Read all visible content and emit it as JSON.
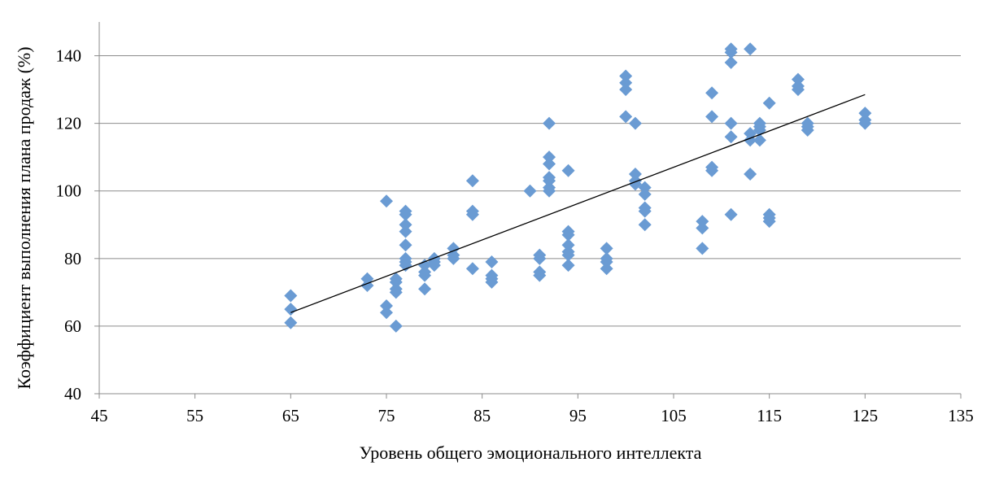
{
  "chart_data": {
    "type": "scatter",
    "title": "",
    "xlabel": "Уровень общего эмоционального интеллекта",
    "ylabel": "Коэффициент выполнения плана продаж (%)",
    "xlim": [
      45,
      135
    ],
    "ylim": [
      40,
      150
    ],
    "xticks": [
      45,
      55,
      65,
      75,
      85,
      95,
      105,
      115,
      125,
      135
    ],
    "yticks": [
      40,
      60,
      80,
      100,
      120,
      140
    ],
    "xtick_labels": [
      "45",
      "55",
      "65",
      "75",
      "85",
      "95",
      "105",
      "115",
      "125",
      "135"
    ],
    "ytick_labels": [
      "40",
      "60",
      "80",
      "100",
      "120",
      "140"
    ],
    "grid": "horizontal",
    "legend": "none",
    "marker": "diamond",
    "marker_color": "#6a9bd3",
    "trendline_color": "#000000",
    "trendline": {
      "type": "linear",
      "x": [
        65,
        125
      ],
      "y": [
        64,
        128.5
      ]
    },
    "series": [
      {
        "points": [
          [
            65,
            69
          ],
          [
            65,
            65
          ],
          [
            65,
            61
          ],
          [
            73,
            74
          ],
          [
            73,
            72
          ],
          [
            75,
            97
          ],
          [
            75,
            66
          ],
          [
            75,
            64
          ],
          [
            76,
            74
          ],
          [
            76,
            73
          ],
          [
            76,
            71
          ],
          [
            76,
            70
          ],
          [
            76,
            60
          ],
          [
            77,
            94
          ],
          [
            77,
            93
          ],
          [
            77,
            90
          ],
          [
            77,
            88
          ],
          [
            77,
            84
          ],
          [
            77,
            80
          ],
          [
            77,
            79
          ],
          [
            77,
            78
          ],
          [
            79,
            78
          ],
          [
            79,
            76
          ],
          [
            79,
            75
          ],
          [
            79,
            71
          ],
          [
            80,
            80
          ],
          [
            80,
            79
          ],
          [
            80,
            78
          ],
          [
            82,
            83
          ],
          [
            82,
            81
          ],
          [
            82,
            80
          ],
          [
            84,
            103
          ],
          [
            84,
            94
          ],
          [
            84,
            93
          ],
          [
            84,
            77
          ],
          [
            86,
            79
          ],
          [
            86,
            75
          ],
          [
            86,
            74
          ],
          [
            86,
            73
          ],
          [
            90,
            100
          ],
          [
            91,
            81
          ],
          [
            91,
            80
          ],
          [
            91,
            76
          ],
          [
            91,
            75
          ],
          [
            92,
            120
          ],
          [
            92,
            110
          ],
          [
            92,
            108
          ],
          [
            92,
            104
          ],
          [
            92,
            103
          ],
          [
            92,
            101
          ],
          [
            92,
            100
          ],
          [
            94,
            106
          ],
          [
            94,
            88
          ],
          [
            94,
            87
          ],
          [
            94,
            84
          ],
          [
            94,
            82
          ],
          [
            94,
            81
          ],
          [
            94,
            78
          ],
          [
            98,
            83
          ],
          [
            98,
            80
          ],
          [
            98,
            79
          ],
          [
            98,
            77
          ],
          [
            100,
            134
          ],
          [
            100,
            132
          ],
          [
            100,
            130
          ],
          [
            100,
            122
          ],
          [
            101,
            120
          ],
          [
            101,
            105
          ],
          [
            101,
            103
          ],
          [
            101,
            102
          ],
          [
            102,
            101
          ],
          [
            102,
            99
          ],
          [
            102,
            95
          ],
          [
            102,
            94
          ],
          [
            102,
            90
          ],
          [
            108,
            91
          ],
          [
            108,
            89
          ],
          [
            108,
            83
          ],
          [
            109,
            129
          ],
          [
            109,
            122
          ],
          [
            109,
            107
          ],
          [
            109,
            106
          ],
          [
            111,
            142
          ],
          [
            111,
            141
          ],
          [
            111,
            138
          ],
          [
            111,
            120
          ],
          [
            111,
            116
          ],
          [
            111,
            93
          ],
          [
            113,
            142
          ],
          [
            113,
            117
          ],
          [
            113,
            115
          ],
          [
            113,
            105
          ],
          [
            114,
            120
          ],
          [
            114,
            119
          ],
          [
            114,
            118
          ],
          [
            114,
            115
          ],
          [
            115,
            126
          ],
          [
            115,
            93
          ],
          [
            115,
            92
          ],
          [
            115,
            91
          ],
          [
            118,
            133
          ],
          [
            118,
            131
          ],
          [
            118,
            130
          ],
          [
            119,
            120
          ],
          [
            119,
            119
          ],
          [
            119,
            118
          ],
          [
            125,
            123
          ],
          [
            125,
            121
          ],
          [
            125,
            120
          ]
        ]
      }
    ]
  }
}
